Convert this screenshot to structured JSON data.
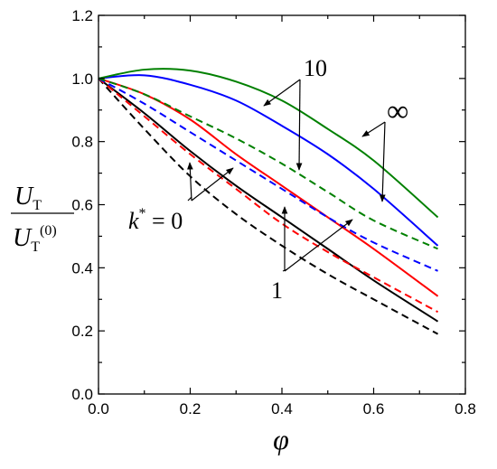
{
  "chart_data": {
    "type": "line",
    "xlabel": "φ",
    "ylabel": {
      "numerator": "U",
      "numerator_sub": "T",
      "denominator": "U",
      "denominator_sub": "T",
      "denominator_sup": "(0)"
    },
    "xlim": [
      0.0,
      0.8
    ],
    "ylim": [
      0.0,
      1.2
    ],
    "xticks": [
      0.0,
      0.2,
      0.4,
      0.6,
      0.8
    ],
    "yticks": [
      0.0,
      0.2,
      0.4,
      0.6,
      0.8,
      1.0,
      1.2
    ],
    "xtick_labels": [
      "0.0",
      "0.2",
      "0.4",
      "0.6",
      "0.8"
    ],
    "ytick_labels": [
      "0.0",
      "0.2",
      "0.4",
      "0.6",
      "0.8",
      "1.0",
      "1.2"
    ],
    "grid": false,
    "annotations": {
      "k0": {
        "symbol": "k",
        "sup": "*",
        "rest": " = 0"
      },
      "k1": "1",
      "k10": "10",
      "kinf": "∞"
    },
    "series": [
      {
        "style": "solid",
        "color": "#000000",
        "x": [
          0.0,
          0.1,
          0.2,
          0.3,
          0.4,
          0.5,
          0.6,
          0.74
        ],
        "y": [
          1.0,
          0.89,
          0.77,
          0.66,
          0.56,
          0.46,
          0.36,
          0.23
        ]
      },
      {
        "style": "dashed",
        "color": "#000000",
        "x": [
          0.0,
          0.1,
          0.2,
          0.3,
          0.4,
          0.5,
          0.6,
          0.74
        ],
        "y": [
          1.0,
          0.84,
          0.69,
          0.57,
          0.47,
          0.38,
          0.3,
          0.19
        ]
      },
      {
        "style": "solid",
        "color": "#ff0000",
        "x": [
          0.0,
          0.1,
          0.2,
          0.3,
          0.4,
          0.5,
          0.6,
          0.74
        ],
        "y": [
          1.0,
          0.95,
          0.87,
          0.76,
          0.66,
          0.56,
          0.46,
          0.31
        ]
      },
      {
        "style": "dashed",
        "color": "#ff0000",
        "x": [
          0.0,
          0.1,
          0.2,
          0.3,
          0.4,
          0.5,
          0.6,
          0.74
        ],
        "y": [
          1.0,
          0.88,
          0.76,
          0.65,
          0.54,
          0.45,
          0.37,
          0.26
        ]
      },
      {
        "style": "solid",
        "color": "#0000ff",
        "x": [
          0.0,
          0.1,
          0.2,
          0.3,
          0.4,
          0.5,
          0.6,
          0.74
        ],
        "y": [
          1.0,
          1.01,
          0.98,
          0.93,
          0.85,
          0.76,
          0.65,
          0.47
        ]
      },
      {
        "style": "dashed",
        "color": "#0000ff",
        "x": [
          0.0,
          0.1,
          0.2,
          0.3,
          0.4,
          0.5,
          0.6,
          0.74
        ],
        "y": [
          1.0,
          0.92,
          0.83,
          0.74,
          0.65,
          0.56,
          0.48,
          0.39
        ]
      },
      {
        "style": "solid",
        "color": "#008000",
        "x": [
          0.0,
          0.1,
          0.2,
          0.3,
          0.4,
          0.5,
          0.6,
          0.74
        ],
        "y": [
          1.0,
          1.028,
          1.025,
          0.99,
          0.93,
          0.84,
          0.74,
          0.56
        ]
      },
      {
        "style": "dashed",
        "color": "#008000",
        "x": [
          0.0,
          0.1,
          0.2,
          0.3,
          0.4,
          0.5,
          0.6,
          0.74
        ],
        "y": [
          1.0,
          0.95,
          0.88,
          0.81,
          0.73,
          0.64,
          0.55,
          0.46
        ]
      }
    ]
  }
}
